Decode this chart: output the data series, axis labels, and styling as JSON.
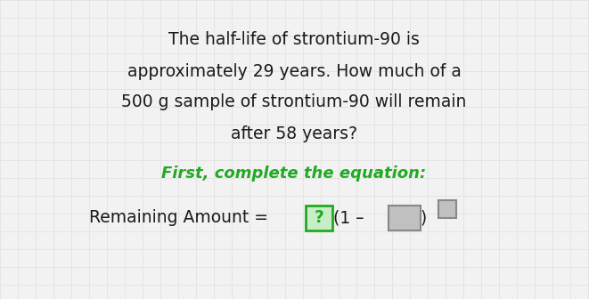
{
  "bg_color": "#f2f2f2",
  "grid_color": "#e2e2e2",
  "text_color": "#1a1a1a",
  "green_color": "#22aa22",
  "question_lines": [
    "The half-life of strontium-90 is",
    "approximately 29 years. How much of a",
    "500 g sample of strontium-90 will remain",
    "after 58 years?"
  ],
  "instruction_line": "First, complete the equation:",
  "figsize": [
    6.61,
    3.36
  ],
  "dpi": 100,
  "q_fontsize": 13.5,
  "eq_fontsize": 13.5,
  "green_fontsize": 13.0
}
